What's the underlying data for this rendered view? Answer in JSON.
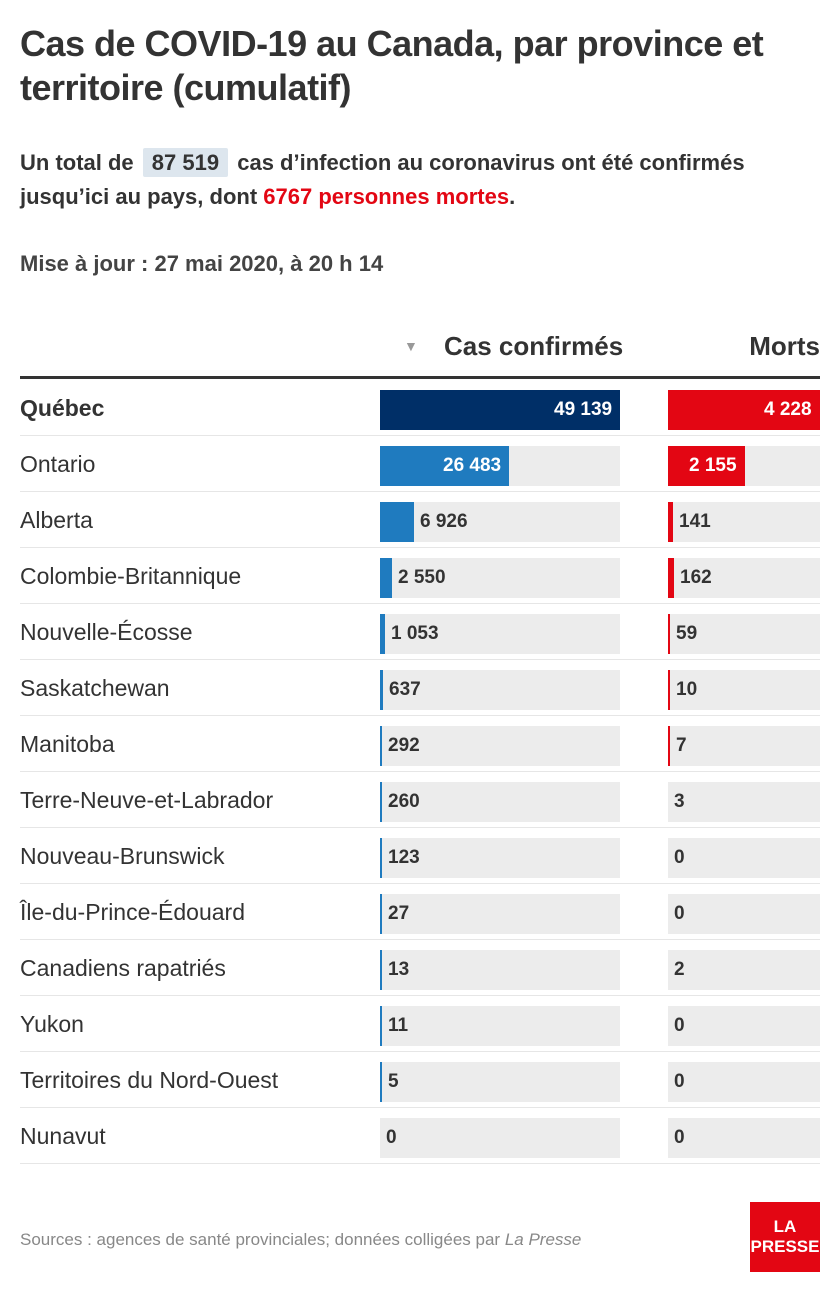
{
  "title": "Cas de COVID-19 au Canada, par province et territoire (cumulatif)",
  "subtitle": {
    "prefix": "Un total de",
    "total": "87 519",
    "middle": "cas d’infection au coronavirus ont été confirmés jusqu’ici au pays, dont",
    "deaths": "6767 personnes mortes",
    "suffix": "."
  },
  "update": "Mise à jour : 27 mai 2020, à 20 h 14",
  "columns": {
    "sort_icon": "▼",
    "cases": "Cas confirmés",
    "deaths": "Morts"
  },
  "colors": {
    "quebec_cases": "#002f67",
    "cases": "#1f7bbf",
    "deaths": "#e30613",
    "track": "#ececec"
  },
  "chart_data": {
    "type": "bar",
    "title": "Cas de COVID-19 au Canada, par province et territoire (cumulatif)",
    "categories": [
      "Québec",
      "Ontario",
      "Alberta",
      "Colombie-Britannique",
      "Nouvelle-Écosse",
      "Saskatchewan",
      "Manitoba",
      "Terre-Neuve-et-Labrador",
      "Nouveau-Brunswick",
      "Île-du-Prince-Édouard",
      "Canadiens rapatriés",
      "Yukon",
      "Territoires du Nord-Ouest",
      "Nunavut"
    ],
    "series": [
      {
        "name": "Cas confirmés",
        "values": [
          49139,
          26483,
          6926,
          2550,
          1053,
          637,
          292,
          260,
          123,
          27,
          13,
          11,
          5,
          0
        ],
        "labels": [
          "49 139",
          "26 483",
          "6 926",
          "2 550",
          "1 053",
          "637",
          "292",
          "260",
          "123",
          "27",
          "13",
          "11",
          "5",
          "0"
        ]
      },
      {
        "name": "Morts",
        "values": [
          4228,
          2155,
          141,
          162,
          59,
          10,
          7,
          3,
          0,
          0,
          2,
          0,
          0,
          0
        ],
        "labels": [
          "4 228",
          "2 155",
          "141",
          "162",
          "59",
          "10",
          "7",
          "3",
          "0",
          "0",
          "2",
          "0",
          "0",
          "0"
        ]
      }
    ]
  },
  "footer": {
    "text": "Sources : agences de santé provinciales; données colligées par",
    "source": "La Presse"
  },
  "logo": {
    "line1": "LA",
    "line2": "PRESSE"
  }
}
